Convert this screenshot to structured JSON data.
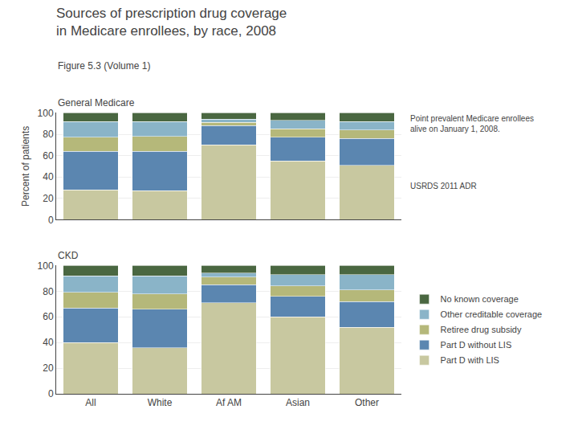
{
  "title": "Sources of prescription drug coverage\nin Medicare enrollees, by race, 2008",
  "subtitle": "Figure 5.3 (Volume 1)",
  "annotations": [
    "Point prevalent Medicare enrollees\nalive on January 1, 2008.",
    "USRDS 2011 ADR"
  ],
  "chart_data": [
    {
      "type": "bar",
      "title": "General Medicare",
      "stacked": true,
      "grid": true,
      "tick_labels": "y",
      "categories": [
        "All",
        "White",
        "Af AM",
        "Asian",
        "Other"
      ],
      "ylabel": "Percent of patients",
      "ylim": [
        0,
        100
      ],
      "yticks": [
        0,
        20,
        40,
        60,
        80,
        100
      ],
      "series": [
        {
          "name": "Part D with LIS",
          "color": "#c8c8a0",
          "values": [
            28,
            27,
            70,
            55,
            51
          ]
        },
        {
          "name": "Part D without LIS",
          "color": "#5b86b0",
          "values": [
            36,
            37,
            18,
            22,
            25
          ]
        },
        {
          "name": "Retiree drug subsidy",
          "color": "#b5b87a",
          "values": [
            13,
            14,
            3,
            8,
            8
          ]
        },
        {
          "name": "Other creditable coverage",
          "color": "#8ab4c8",
          "values": [
            15,
            14,
            3,
            8,
            8
          ]
        },
        {
          "name": "No known coverage",
          "color": "#4a6741",
          "values": [
            8,
            8,
            6,
            7,
            8
          ]
        }
      ]
    },
    {
      "type": "bar",
      "title": "CKD",
      "stacked": true,
      "grid": true,
      "legend": "right",
      "categories": [
        "All",
        "White",
        "Af AM",
        "Asian",
        "Other"
      ],
      "ylim": [
        0,
        100
      ],
      "yticks": [
        0,
        20,
        40,
        60,
        80,
        100
      ],
      "series": [
        {
          "name": "Part D with LIS",
          "color": "#c8c8a0",
          "values": [
            40,
            36,
            71,
            60,
            52
          ]
        },
        {
          "name": "Part D without LIS",
          "color": "#5b86b0",
          "values": [
            27,
            30,
            14,
            16,
            20
          ]
        },
        {
          "name": "Retiree drug subsidy",
          "color": "#b5b87a",
          "values": [
            12,
            12,
            6,
            8,
            9
          ]
        },
        {
          "name": "Other creditable coverage",
          "color": "#8ab4c8",
          "values": [
            13,
            14,
            3,
            9,
            12
          ]
        },
        {
          "name": "No known coverage",
          "color": "#4a6741",
          "values": [
            8,
            8,
            6,
            7,
            7
          ]
        }
      ]
    }
  ]
}
